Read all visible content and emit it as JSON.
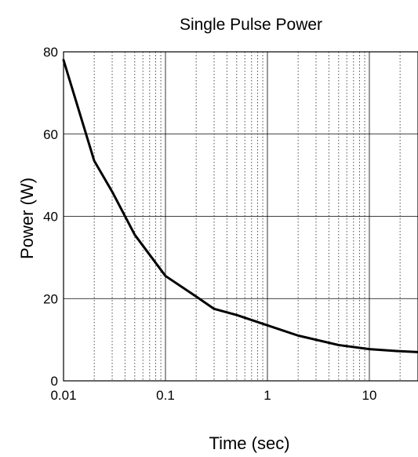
{
  "chart_data": {
    "type": "line",
    "title": "Single Pulse Power",
    "xlabel": "Time (sec)",
    "ylabel": "Power (W)",
    "x_scale": "log",
    "xlim": [
      0.01,
      30
    ],
    "ylim": [
      0,
      80
    ],
    "x_ticks": [
      0.01,
      0.1,
      1,
      10
    ],
    "x_tick_labels": [
      "0.01",
      "0.1",
      "1",
      "10"
    ],
    "y_ticks": [
      0,
      20,
      40,
      60,
      80
    ],
    "y_tick_labels": [
      "0",
      "20",
      "40",
      "60",
      "80"
    ],
    "grid": true,
    "series": [
      {
        "x": [
          0.01,
          0.02,
          0.03,
          0.05,
          0.1,
          0.2,
          0.3,
          0.5,
          1,
          2,
          5,
          10,
          20,
          30
        ],
        "y": [
          78,
          53.5,
          46,
          35.5,
          25.5,
          20.5,
          17.5,
          16,
          13.5,
          11,
          8.7,
          7.7,
          7.2,
          7
        ]
      }
    ]
  }
}
